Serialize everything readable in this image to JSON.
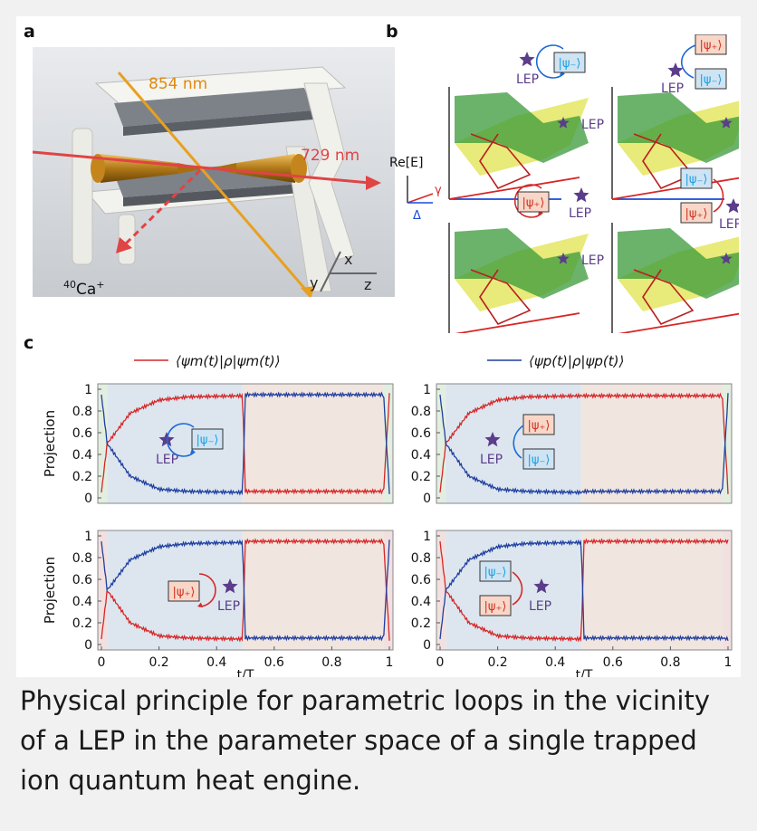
{
  "figure": {
    "panel_a_label": "a",
    "panel_b_label": "b",
    "panel_c_label": "c",
    "laser_854": "854 nm",
    "laser_729": "729 nm",
    "ion_mass": "40",
    "ion_name": "Ca",
    "ion_charge": "+",
    "axis_x": "x",
    "axis_y": "y",
    "axis_z": "z",
    "b_axis_re": "Re[E]",
    "b_axis_gamma": "γ",
    "b_axis_delta": "Δ",
    "lep": "LEP",
    "psi_minus": "|ψ₋⟩",
    "psi_plus": "|ψ₊⟩",
    "legend_m": "⟨ψm(t)|ρ|ψm(t)⟩",
    "legend_p": "⟨ψp(t)|ρ|ψp(t)⟩",
    "ylabel": "Projection",
    "xlabel": "t/T",
    "yticks": [
      "1",
      "0.8",
      "0.6",
      "0.4",
      "0.2",
      "0"
    ],
    "xticks": [
      "0",
      "0.2",
      "0.4",
      "0.6",
      "0.8",
      "1"
    ]
  },
  "caption": "Physical principle for parametric loops in the vicinity of a LEP in the parameter space of a single trapped ion quantum heat engine.",
  "colors": {
    "red_series": "#d62728",
    "blue_series": "#1f3f9f",
    "psi_minus": "#1a9fe0",
    "psi_plus": "#d03020",
    "lep_star": "#5b3d8a"
  },
  "chart_data": [
    {
      "type": "line",
      "panel": "c-top-left",
      "xlim": [
        0,
        1
      ],
      "ylim": [
        0,
        1
      ],
      "series": [
        {
          "name": "⟨ψm(t)|ρ|ψm(t)⟩",
          "x": [
            0,
            0.02,
            0.1,
            0.2,
            0.3,
            0.49,
            0.5,
            0.98,
            1
          ],
          "values": [
            0.05,
            0.5,
            0.78,
            0.9,
            0.93,
            0.94,
            0.06,
            0.06,
            0.95
          ]
        },
        {
          "name": "⟨ψp(t)|ρ|ψp(t)⟩",
          "x": [
            0,
            0.02,
            0.1,
            0.2,
            0.3,
            0.49,
            0.5,
            0.98,
            1
          ],
          "values": [
            0.95,
            0.5,
            0.2,
            0.08,
            0.06,
            0.05,
            0.95,
            0.95,
            0.05
          ]
        }
      ]
    },
    {
      "type": "line",
      "panel": "c-top-right",
      "xlim": [
        0,
        1
      ],
      "ylim": [
        0,
        1
      ],
      "series": [
        {
          "name": "⟨ψm(t)|ρ|ψm(t)⟩",
          "x": [
            0,
            0.02,
            0.1,
            0.2,
            0.3,
            0.49,
            0.5,
            0.98,
            1
          ],
          "values": [
            0.05,
            0.5,
            0.78,
            0.9,
            0.93,
            0.94,
            0.94,
            0.94,
            0.05
          ]
        },
        {
          "name": "⟨ψp(t)|ρ|ψp(t)⟩",
          "x": [
            0,
            0.02,
            0.1,
            0.2,
            0.3,
            0.49,
            0.5,
            0.98,
            1
          ],
          "values": [
            0.95,
            0.5,
            0.2,
            0.08,
            0.06,
            0.05,
            0.06,
            0.06,
            0.95
          ]
        }
      ]
    },
    {
      "type": "line",
      "panel": "c-bottom-left",
      "xlim": [
        0,
        1
      ],
      "ylim": [
        0,
        1
      ],
      "series": [
        {
          "name": "⟨ψm(t)|ρ|ψm(t)⟩",
          "x": [
            0,
            0.02,
            0.1,
            0.2,
            0.3,
            0.49,
            0.5,
            0.98,
            1
          ],
          "values": [
            0.05,
            0.5,
            0.2,
            0.08,
            0.06,
            0.05,
            0.95,
            0.95,
            0.05
          ]
        },
        {
          "name": "⟨ψp(t)|ρ|ψp(t)⟩",
          "x": [
            0,
            0.02,
            0.1,
            0.2,
            0.3,
            0.49,
            0.5,
            0.98,
            1
          ],
          "values": [
            0.95,
            0.5,
            0.78,
            0.9,
            0.93,
            0.94,
            0.06,
            0.06,
            0.95
          ]
        }
      ]
    },
    {
      "type": "line",
      "panel": "c-bottom-right",
      "xlim": [
        0,
        1
      ],
      "ylim": [
        0,
        1
      ],
      "series": [
        {
          "name": "⟨ψm(t)|ρ|ψm(t)⟩",
          "x": [
            0,
            0.02,
            0.1,
            0.2,
            0.3,
            0.49,
            0.5,
            0.98,
            1
          ],
          "values": [
            0.95,
            0.5,
            0.2,
            0.08,
            0.06,
            0.05,
            0.95,
            0.95,
            0.95
          ]
        },
        {
          "name": "⟨ψp(t)|ρ|ψp(t)⟩",
          "x": [
            0,
            0.02,
            0.1,
            0.2,
            0.3,
            0.49,
            0.5,
            0.98,
            1
          ],
          "values": [
            0.05,
            0.5,
            0.78,
            0.9,
            0.93,
            0.94,
            0.06,
            0.06,
            0.05
          ]
        }
      ]
    }
  ]
}
